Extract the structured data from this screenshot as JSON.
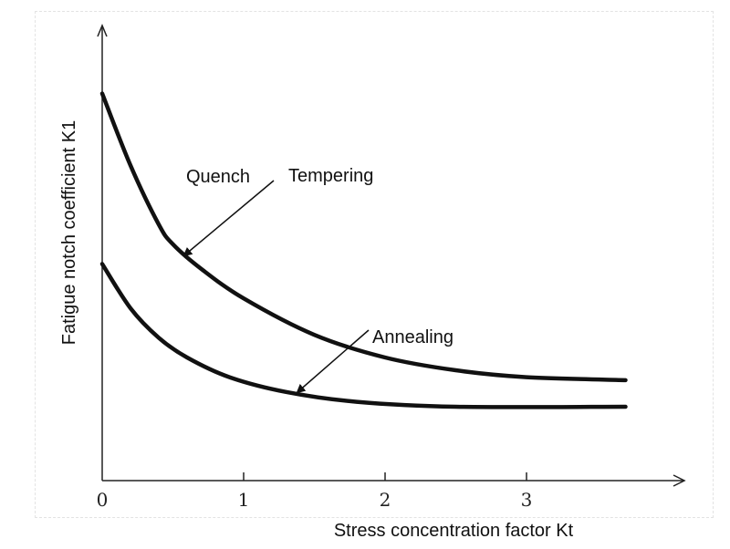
{
  "chart_data": {
    "type": "line",
    "title": "",
    "xlabel": "Stress concentration factor Kt",
    "ylabel": "Fatigue notch coefficient K1",
    "xlim": [
      0,
      4
    ],
    "ylim": [
      0,
      4
    ],
    "x_ticks": [
      0,
      1,
      2,
      3
    ],
    "x_tick_labels": [
      "0",
      "1",
      "2",
      "3"
    ],
    "y_ticks": [],
    "grid": false,
    "legend": "none",
    "series": [
      {
        "name": "Quench Tempering",
        "label_text": [
          "Quench",
          "Tempering"
        ],
        "x": [
          0,
          0.2,
          0.4,
          0.5,
          0.7,
          1.0,
          1.5,
          2.0,
          2.5,
          3.0,
          3.7
        ],
        "y": [
          3.93,
          3.2,
          2.6,
          2.4,
          2.15,
          1.85,
          1.48,
          1.25,
          1.12,
          1.05,
          1.02
        ]
      },
      {
        "name": "Annealing",
        "label_text": [
          "Annealing"
        ],
        "x": [
          0,
          0.2,
          0.4,
          0.6,
          0.9,
          1.3,
          1.8,
          2.5,
          3.7
        ],
        "y": [
          2.2,
          1.75,
          1.45,
          1.25,
          1.05,
          0.9,
          0.8,
          0.75,
          0.75
        ]
      }
    ]
  }
}
